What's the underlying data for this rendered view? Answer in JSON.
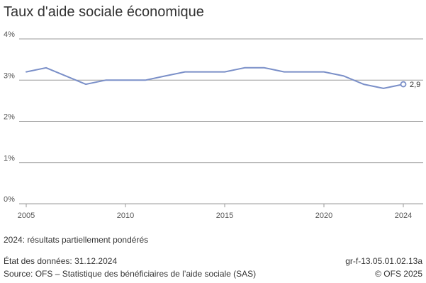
{
  "title": "Taux d'aide sociale économique",
  "chart_data": {
    "type": "line",
    "title": "Taux d'aide sociale économique",
    "xlabel": "",
    "ylabel": "",
    "x": [
      2005,
      2006,
      2007,
      2008,
      2009,
      2010,
      2011,
      2012,
      2013,
      2014,
      2015,
      2016,
      2017,
      2018,
      2019,
      2020,
      2021,
      2022,
      2023,
      2024
    ],
    "series": [
      {
        "values": [
          3.2,
          3.3,
          3.1,
          2.9,
          3.0,
          3.0,
          3.0,
          3.1,
          3.2,
          3.2,
          3.2,
          3.3,
          3.3,
          3.2,
          3.2,
          3.2,
          3.1,
          2.9,
          2.8,
          2.9
        ],
        "color": "#7a8fc8"
      }
    ],
    "xlim": [
      2005,
      2024
    ],
    "ylim": [
      0,
      4
    ],
    "x_ticks": [
      2005,
      2010,
      2015,
      2020,
      2024
    ],
    "x_tick_labels": [
      "2005",
      "2010",
      "2015",
      "2020",
      "2024"
    ],
    "y_ticks": [
      0,
      1,
      2,
      3,
      4
    ],
    "y_tick_labels": [
      "0%",
      "1%",
      "2%",
      "3%",
      "4%"
    ],
    "end_label": "2,9",
    "grid": true,
    "grid_color": "#9a9a9a"
  },
  "note": "2024: résultats partiellement pondérés",
  "footer": {
    "state": "État des données: 31.12.2024",
    "source": "Source: OFS – Statistique des bénéficiaires de l’aide sociale (SAS)",
    "code": "gr-f-13.05.01.02.13a",
    "copyright": "© OFS 2025"
  }
}
